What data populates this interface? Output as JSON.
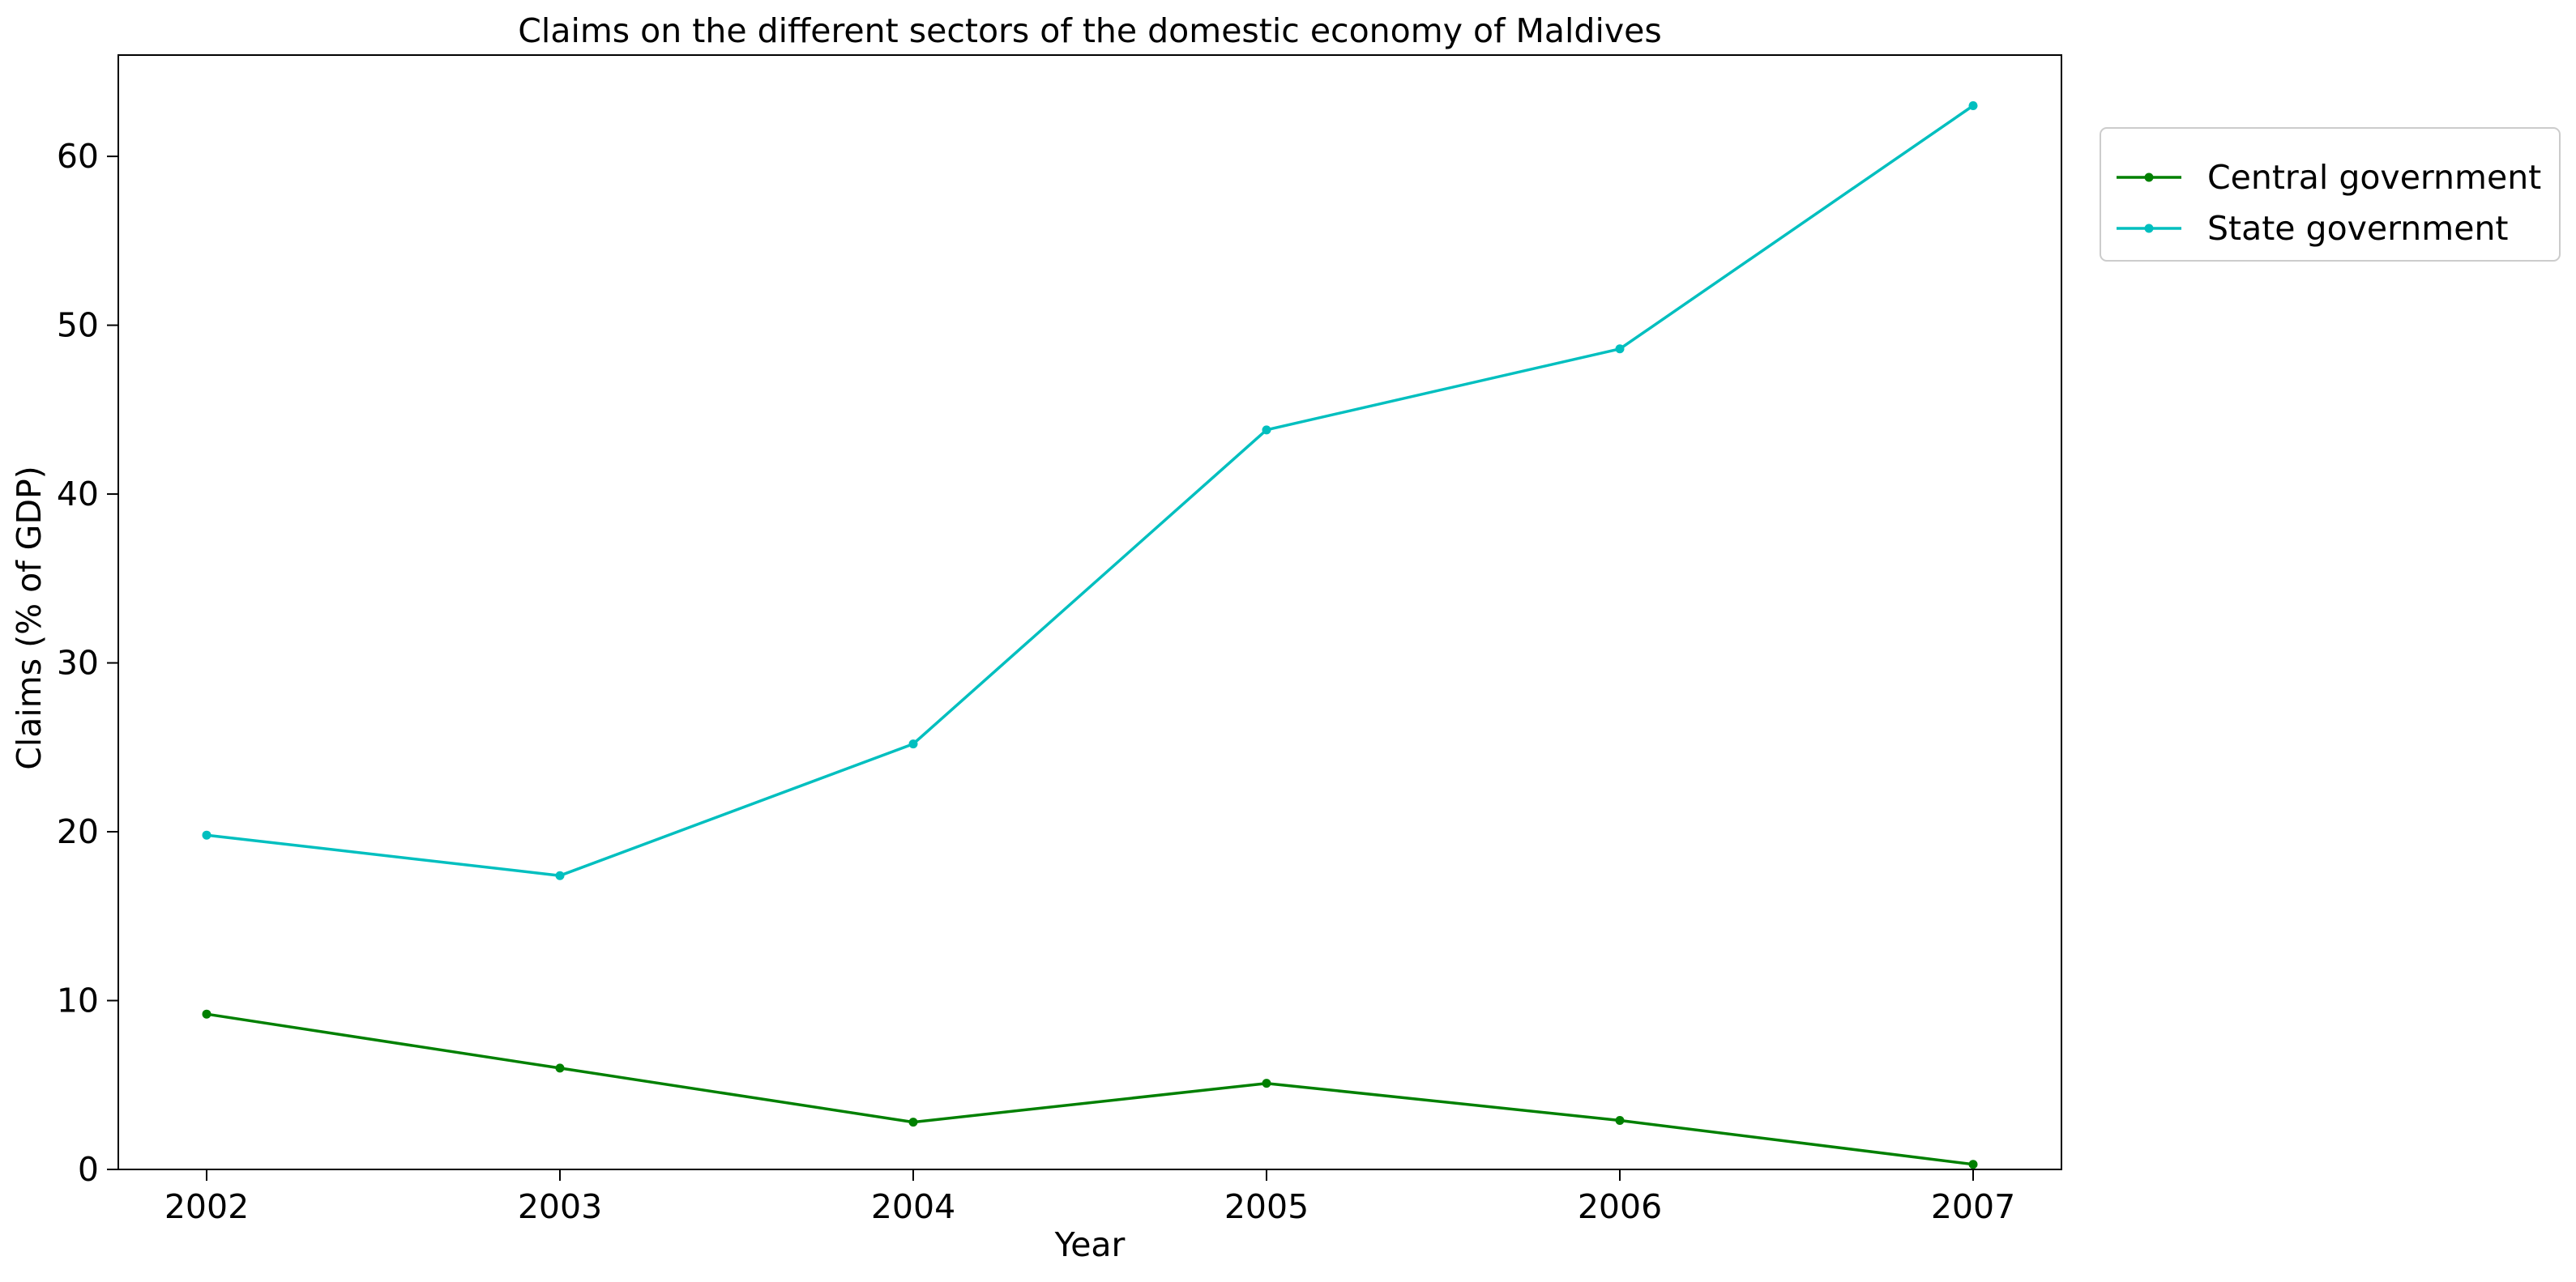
{
  "chart_data": {
    "type": "line",
    "title": "Claims on the different sectors of the domestic economy of Maldives",
    "xlabel": "Year",
    "ylabel": "Claims (% of GDP)",
    "x": [
      "2002",
      "2003",
      "2004",
      "2005",
      "2006",
      "2007"
    ],
    "xlim": [
      2001.75,
      2007.25
    ],
    "ylim": [
      0,
      66
    ],
    "yticks": [
      0,
      10,
      20,
      30,
      40,
      50,
      60
    ],
    "grid": false,
    "legend_position": "outside top-right",
    "series": [
      {
        "name": "Central government",
        "color": "#008000",
        "marker": "circle",
        "values": [
          9.2,
          6.0,
          2.8,
          5.1,
          2.9,
          0.3
        ]
      },
      {
        "name": "State government",
        "color": "#00bfbf",
        "marker": "circle",
        "values": [
          19.8,
          17.4,
          25.2,
          43.8,
          48.6,
          63.0
        ]
      }
    ]
  }
}
